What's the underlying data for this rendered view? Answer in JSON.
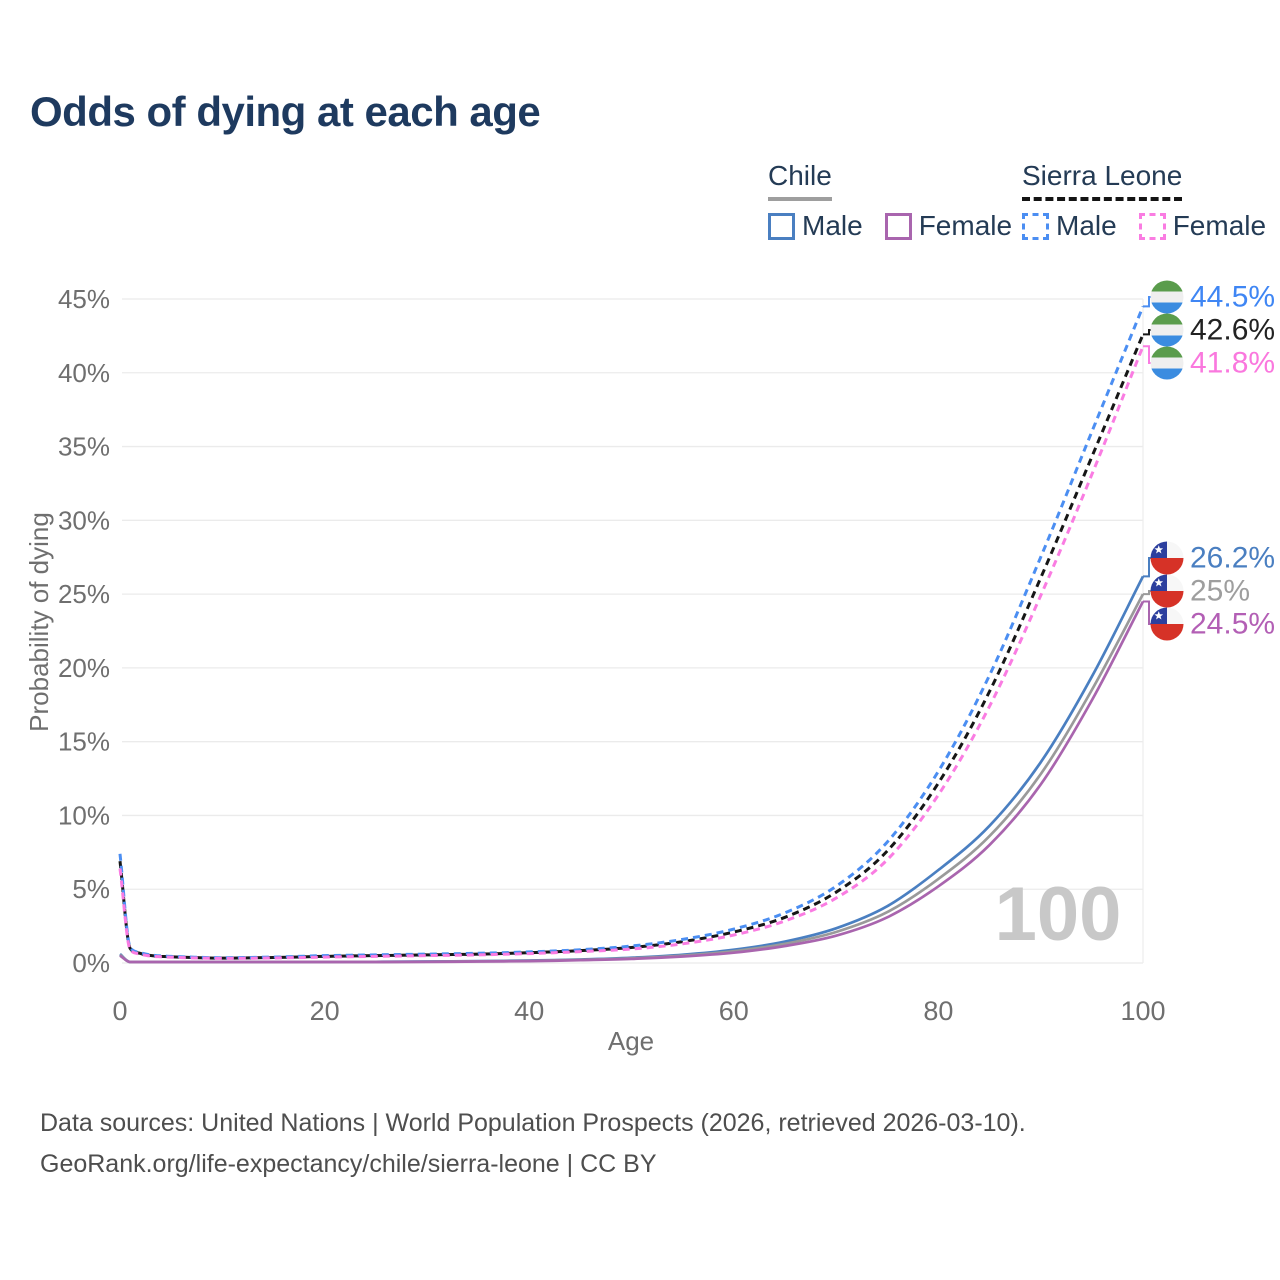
{
  "title": "Odds of dying at each age",
  "legend": {
    "chile": {
      "title": "Chile",
      "male": "Male",
      "female": "Female"
    },
    "sierra_leone": {
      "title": "Sierra Leone",
      "male": "Male",
      "female": "Female"
    }
  },
  "chart_data": {
    "type": "line",
    "xlabel": "Age",
    "ylabel": "Probability of dying",
    "xlim": [
      0,
      100
    ],
    "ylim": [
      0,
      45
    ],
    "grid": "horizontal",
    "legend_position": "top-right",
    "watermark": "100",
    "xticks": [
      {
        "value": 0,
        "label": "0"
      },
      {
        "value": 20,
        "label": "20"
      },
      {
        "value": 40,
        "label": "40"
      },
      {
        "value": 60,
        "label": "60"
      },
      {
        "value": 80,
        "label": "80"
      },
      {
        "value": 100,
        "label": "100"
      }
    ],
    "yticks": [
      {
        "value": 0,
        "label": "0%"
      },
      {
        "value": 5,
        "label": "5%"
      },
      {
        "value": 10,
        "label": "10%"
      },
      {
        "value": 15,
        "label": "15%"
      },
      {
        "value": 20,
        "label": "20%"
      },
      {
        "value": 25,
        "label": "25%"
      },
      {
        "value": 30,
        "label": "30%"
      },
      {
        "value": 35,
        "label": "35%"
      },
      {
        "value": 40,
        "label": "40%"
      },
      {
        "value": 45,
        "label": "45%"
      }
    ],
    "ages": [
      0,
      1,
      2,
      3,
      4,
      5,
      10,
      15,
      20,
      25,
      30,
      35,
      40,
      45,
      50,
      55,
      60,
      65,
      70,
      75,
      80,
      85,
      90,
      95,
      100
    ],
    "series": [
      {
        "id": "chile-male",
        "country": "Chile",
        "sex": "Male",
        "line": "solid",
        "color": "#4a7fc1",
        "end_label": "26.2%",
        "end_label_color": "#4a7fc1",
        "flag": "chile",
        "values": [
          0.6,
          0.045,
          0.03,
          0.025,
          0.022,
          0.02,
          0.016,
          0.03,
          0.06,
          0.08,
          0.1,
          0.13,
          0.17,
          0.24,
          0.36,
          0.56,
          0.9,
          1.45,
          2.35,
          3.85,
          6.3,
          9.3,
          13.6,
          19.4,
          26.2
        ]
      },
      {
        "id": "chile-total",
        "country": "Chile",
        "sex": "All",
        "line": "solid",
        "color": "#9a9a9a",
        "end_label": "25%",
        "end_label_color": "#9e9e9e",
        "flag": "chile",
        "values": [
          0.55,
          0.04,
          0.027,
          0.022,
          0.019,
          0.018,
          0.014,
          0.026,
          0.05,
          0.068,
          0.088,
          0.115,
          0.15,
          0.215,
          0.32,
          0.5,
          0.8,
          1.3,
          2.1,
          3.45,
          5.7,
          8.6,
          12.8,
          18.5,
          25.0
        ]
      },
      {
        "id": "chile-female",
        "country": "Chile",
        "sex": "Female",
        "line": "solid",
        "color": "#a965ae",
        "end_label": "24.5%",
        "end_label_color": "#b35fb5",
        "flag": "chile",
        "values": [
          0.5,
          0.036,
          0.024,
          0.02,
          0.017,
          0.016,
          0.012,
          0.022,
          0.04,
          0.055,
          0.075,
          0.1,
          0.13,
          0.19,
          0.28,
          0.44,
          0.7,
          1.15,
          1.85,
          3.1,
          5.2,
          8.0,
          12.1,
          17.8,
          24.5
        ]
      },
      {
        "id": "sl-total",
        "country": "Sierra Leone",
        "sex": "All",
        "line": "dashed",
        "color": "#161616",
        "end_label": "42.6%",
        "end_label_color": "#222222",
        "flag": "sierra-leone",
        "values": [
          6.9,
          0.98,
          0.65,
          0.51,
          0.45,
          0.42,
          0.33,
          0.37,
          0.45,
          0.5,
          0.55,
          0.6,
          0.7,
          0.84,
          1.05,
          1.45,
          2.1,
          3.1,
          4.8,
          7.6,
          12.2,
          18.4,
          26.1,
          34.3,
          42.6
        ]
      },
      {
        "id": "sl-male",
        "country": "Sierra Leone",
        "sex": "Male",
        "line": "dashed",
        "color": "#4b8ef2",
        "end_label": "44.5%",
        "end_label_color": "#3f86f4",
        "flag": "sierra-leone",
        "values": [
          7.4,
          1.05,
          0.7,
          0.55,
          0.48,
          0.45,
          0.36,
          0.4,
          0.5,
          0.55,
          0.6,
          0.66,
          0.75,
          0.9,
          1.15,
          1.6,
          2.3,
          3.4,
          5.2,
          8.2,
          13.0,
          19.5,
          27.5,
          36.0,
          44.5
        ]
      },
      {
        "id": "sl-female",
        "country": "Sierra Leone",
        "sex": "Female",
        "line": "dashed",
        "color": "#fa7ce2",
        "end_label": "41.8%",
        "end_label_color": "#fa78de",
        "flag": "sierra-leone",
        "values": [
          6.4,
          0.9,
          0.6,
          0.47,
          0.42,
          0.39,
          0.31,
          0.34,
          0.4,
          0.45,
          0.5,
          0.55,
          0.64,
          0.77,
          0.95,
          1.3,
          1.9,
          2.85,
          4.4,
          7.0,
          11.4,
          17.4,
          24.9,
          33.1,
          41.8
        ]
      }
    ]
  },
  "flags": {
    "chile": {
      "blue": "#2c3f9e",
      "red": "#d63227",
      "white": "#f7f7f7"
    },
    "sierra_leone": {
      "green": "#5a9c4c",
      "white": "#efefef",
      "blue": "#3b8ce0"
    }
  },
  "footer": {
    "line1": "Data sources: United Nations | World Population Prospects (2026, retrieved 2026-03-10).",
    "line2": "GeoRank.org/life-expectancy/chile/sierra-leone | CC BY"
  }
}
